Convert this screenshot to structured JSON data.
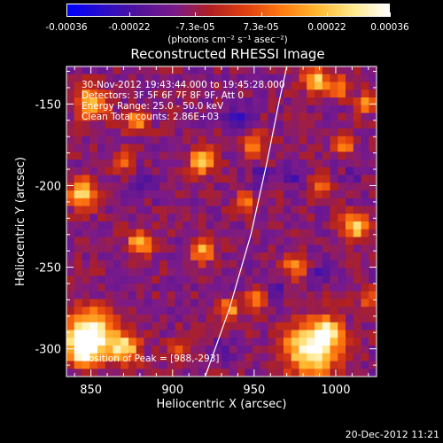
{
  "colorbar": {
    "labels": [
      "-0.00036",
      "-0.00022",
      "-7.3e-05",
      "7.3e-05",
      "0.00022",
      "0.00036"
    ],
    "values": [
      -0.00036,
      -0.00022,
      -7.3e-05,
      7.3e-05,
      0.00022,
      0.00036
    ],
    "unit": "(photons cm⁻² s⁻¹ asec⁻²)",
    "colormap": [
      "#0000ff",
      "#2a0dc8",
      "#52139a",
      "#7a1a8a",
      "#b02020",
      "#e04010",
      "#ff7a10",
      "#ffb830",
      "#ffe98a",
      "#ffffff"
    ]
  },
  "chart_data": {
    "type": "heatmap",
    "title": "Reconstructed RHESSI Image",
    "xlabel": "Heliocentric X (arcsec)",
    "ylabel": "Heliocentric Y (arcsec)",
    "xlim": [
      835,
      1025
    ],
    "ylim": [
      -317,
      -127
    ],
    "x_ticks": [
      850,
      900,
      950,
      1000
    ],
    "y_ticks": [
      -300,
      -250,
      -200,
      -150
    ],
    "x_tick_labels": [
      "850",
      "900",
      "950",
      "1000"
    ],
    "y_tick_labels": [
      "-300",
      "-250",
      "-200",
      "-150"
    ],
    "annotations": [
      "30-Nov-2012 19:43:44.000 to 19:45:28.000",
      "Detectors: 3F 5F 6F 7F 8F 9F, Att 0",
      "Energy Range: 25.0 - 50.0 keV",
      "Clean     Total counts: 2.86E+03"
    ],
    "peak_label": "Position of Peak = [988,-293]",
    "peak": [
      988,
      -293
    ],
    "limb_curve": [
      [
        920,
        -317
      ],
      [
        935,
        -275
      ],
      [
        948,
        -230
      ],
      [
        958,
        -185
      ],
      [
        965,
        -150
      ],
      [
        970,
        -127
      ]
    ],
    "grid_size": 40,
    "bright_sources": [
      {
        "x": 985,
        "y": -300,
        "amp": 1.0,
        "r": 16
      },
      {
        "x": 850,
        "y": -290,
        "amp": 0.95,
        "r": 14
      },
      {
        "x": 845,
        "y": -300,
        "amp": 0.9,
        "r": 10
      },
      {
        "x": 870,
        "y": -300,
        "amp": 0.85,
        "r": 9
      },
      {
        "x": 850,
        "y": -150,
        "amp": 0.85,
        "r": 9
      },
      {
        "x": 845,
        "y": -205,
        "amp": 0.75,
        "r": 9
      },
      {
        "x": 880,
        "y": -235,
        "amp": 0.75,
        "r": 7
      },
      {
        "x": 878,
        "y": -160,
        "amp": 0.55,
        "r": 7
      },
      {
        "x": 918,
        "y": -185,
        "amp": 0.85,
        "r": 7
      },
      {
        "x": 918,
        "y": -240,
        "amp": 0.65,
        "r": 7
      },
      {
        "x": 950,
        "y": -175,
        "amp": 0.5,
        "r": 7
      },
      {
        "x": 1012,
        "y": -225,
        "amp": 0.8,
        "r": 8
      },
      {
        "x": 1005,
        "y": -175,
        "amp": 0.6,
        "r": 6
      },
      {
        "x": 1018,
        "y": -150,
        "amp": 0.5,
        "r": 6
      },
      {
        "x": 1002,
        "y": -140,
        "amp": 0.6,
        "r": 6
      },
      {
        "x": 988,
        "y": -135,
        "amp": 0.85,
        "r": 7
      },
      {
        "x": 975,
        "y": -250,
        "amp": 0.55,
        "r": 7
      },
      {
        "x": 995,
        "y": -290,
        "amp": 0.7,
        "r": 8
      },
      {
        "x": 1020,
        "y": -270,
        "amp": 0.5,
        "r": 6
      },
      {
        "x": 870,
        "y": -185,
        "amp": 0.5,
        "r": 6
      },
      {
        "x": 935,
        "y": -275,
        "amp": 0.6,
        "r": 6
      },
      {
        "x": 950,
        "y": -270,
        "amp": 0.55,
        "r": 6
      },
      {
        "x": 902,
        "y": -300,
        "amp": 0.45,
        "r": 6
      },
      {
        "x": 945,
        "y": -210,
        "amp": 0.5,
        "r": 6
      },
      {
        "x": 990,
        "y": -200,
        "amp": 0.45,
        "r": 6
      }
    ],
    "dark_sources": [
      {
        "x": 940,
        "y": -160,
        "amp": 0.55,
        "r": 8
      },
      {
        "x": 955,
        "y": -195,
        "amp": 0.5,
        "r": 7
      },
      {
        "x": 975,
        "y": -195,
        "amp": 0.45,
        "r": 7
      },
      {
        "x": 885,
        "y": -200,
        "amp": 0.4,
        "r": 7
      },
      {
        "x": 965,
        "y": -265,
        "amp": 0.45,
        "r": 7
      },
      {
        "x": 930,
        "y": -300,
        "amp": 0.5,
        "r": 7
      },
      {
        "x": 990,
        "y": -255,
        "amp": 0.4,
        "r": 6
      },
      {
        "x": 1010,
        "y": -195,
        "amp": 0.35,
        "r": 6
      }
    ]
  },
  "footer": {
    "date": "20-Dec-2012 11:21"
  }
}
